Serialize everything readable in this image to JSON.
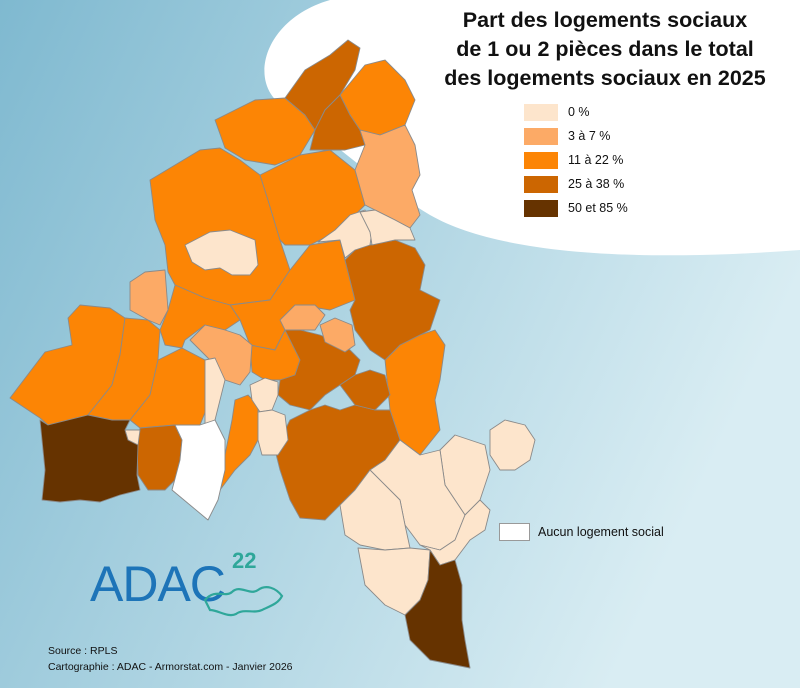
{
  "title": {
    "line1": "Part des logements sociaux",
    "line2": "de 1 ou 2 pièces dans le total",
    "line3": "des logements sociaux en 2025"
  },
  "legend": {
    "classes": [
      {
        "label": "0 %",
        "color": "#fde5cc"
      },
      {
        "label": "3 à 7 %",
        "color": "#fcaa66"
      },
      {
        "label": "11 à 22 %",
        "color": "#fc8505"
      },
      {
        "label": "25 à 38 %",
        "color": "#cc6601"
      },
      {
        "label": "50 et 85 %",
        "color": "#663300"
      }
    ],
    "no_data": {
      "label": "Aucun logement social",
      "color": "#ffffff"
    }
  },
  "logo": {
    "text": "ADAC",
    "superscript": "22"
  },
  "credits": {
    "source": "Source : RPLS",
    "cartography": "Cartographie : ADAC - Armorstat.com - Janvier 2026"
  },
  "colors": {
    "sea_dark": "#7fb9d0",
    "sea_light": "#d9edf3",
    "header_bg": "#ffffff",
    "border": "#8a8a8a"
  }
}
